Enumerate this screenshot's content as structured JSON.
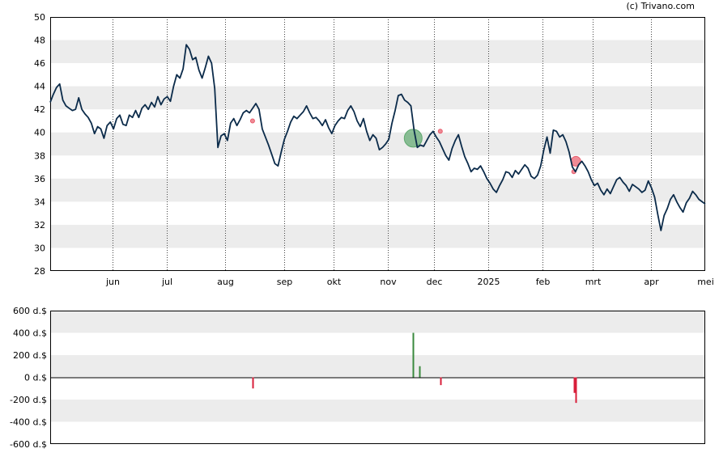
{
  "copyright": "(c) Trivano.com",
  "chart_data": [
    {
      "type": "line",
      "y_ticks": [
        "28",
        "30",
        "32",
        "34",
        "36",
        "38",
        "40",
        "42",
        "44",
        "46",
        "48",
        "50"
      ],
      "ylim": [
        28,
        50
      ],
      "x_tick_labels": [
        "jun",
        "jul",
        "aug",
        "sep",
        "okt",
        "nov",
        "dec",
        "2025",
        "feb",
        "mrt",
        "apr",
        "mei"
      ],
      "x_tick_positions_index": [
        30,
        56,
        84,
        112,
        136,
        162,
        184,
        210,
        236,
        260,
        288,
        314
      ],
      "x_count": 314,
      "grid": true,
      "line_color": "#0b2b4a",
      "series": [
        {
          "values": [
            42.6,
            43.3,
            43.9,
            44.2,
            42.8,
            42.3,
            42.1,
            41.9,
            42.0,
            43.0,
            42.0,
            41.6,
            41.3,
            40.8,
            39.9,
            40.5,
            40.3,
            39.5,
            40.6,
            40.9,
            40.3,
            41.2,
            41.5,
            40.7,
            40.6,
            41.5,
            41.3,
            41.9,
            41.3,
            42.1,
            42.4,
            42.0,
            42.6,
            42.2,
            43.1,
            42.4,
            42.9,
            43.1,
            42.7,
            44.0,
            45.0,
            44.7,
            45.5,
            47.6,
            47.2,
            46.3,
            46.5,
            45.4,
            44.7,
            45.6,
            46.6,
            46.0,
            43.8,
            38.7,
            39.7,
            39.9,
            39.3,
            40.8,
            41.2,
            40.6,
            41.1,
            41.7,
            41.9,
            41.7,
            42.1,
            42.5,
            42.0,
            40.3,
            39.6,
            38.9,
            38.1,
            37.3,
            37.1,
            38.3,
            39.4,
            40.1,
            40.9,
            41.4,
            41.2,
            41.5,
            41.8,
            42.3,
            41.7,
            41.2,
            41.3,
            41.0,
            40.6,
            41.1,
            40.4,
            39.9,
            40.6,
            41.0,
            41.3,
            41.2,
            41.9,
            42.3,
            41.8,
            41.0,
            40.5,
            41.2,
            40.1,
            39.3,
            39.8,
            39.5,
            38.5,
            38.7,
            39.0,
            39.4,
            40.8,
            41.9,
            43.2,
            43.3,
            42.8,
            42.6,
            42.3,
            40.2,
            38.7,
            38.9,
            38.8,
            39.3,
            39.8,
            40.1,
            39.6,
            39.2,
            38.6,
            38.0,
            37.6,
            38.6,
            39.3,
            39.8,
            38.8,
            37.9,
            37.3,
            36.6,
            36.9,
            36.8,
            37.1,
            36.6,
            36.0,
            35.6,
            35.1,
            34.8,
            35.4,
            35.9,
            36.6,
            36.5,
            36.1,
            36.7,
            36.4,
            36.8,
            37.2,
            36.9,
            36.2,
            36.0,
            36.3,
            37.1,
            38.5,
            39.6,
            38.2,
            40.2,
            40.1,
            39.6,
            39.8,
            39.2,
            38.3,
            37.0,
            36.6,
            37.2,
            37.5,
            37.1,
            36.6,
            35.9,
            35.4,
            35.6,
            35.0,
            34.6,
            35.1,
            34.7,
            35.3,
            35.9,
            36.1,
            35.7,
            35.4,
            34.9,
            35.5,
            35.3,
            35.1,
            34.8,
            35.0,
            35.8,
            35.2,
            34.4,
            32.9,
            31.5,
            32.8,
            33.4,
            34.2,
            34.6,
            34.0,
            33.5,
            33.1,
            33.9,
            34.3,
            34.9,
            34.6,
            34.2,
            34.0,
            33.8
          ]
        },
        {
          "values": []
        }
      ],
      "markers": [
        {
          "index": 97,
          "y": 41.0,
          "r": 2.5,
          "color": "#e85a6a"
        },
        {
          "index": 174,
          "y": 39.5,
          "r": 11,
          "color": "#5ea86e"
        },
        {
          "index": 187,
          "y": 40.1,
          "r": 2.5,
          "color": "#e85a6a"
        },
        {
          "index": 252,
          "y": 37.5,
          "r": 6,
          "color": "#e85a6a"
        },
        {
          "index": 251,
          "y": 36.6,
          "r": 2.5,
          "color": "#e85a6a"
        }
      ]
    },
    {
      "type": "bar",
      "y_ticks": [
        "600 d.$",
        "400 d.$",
        "200 d.$",
        "0 d.$",
        "-200 d.$",
        "-400 d.$",
        "-600 d.$"
      ],
      "y_tick_values": [
        600,
        400,
        200,
        0,
        -200,
        -400,
        -600
      ],
      "ylim": [
        -600,
        600
      ],
      "x_count": 314,
      "bars": [
        {
          "index": 97,
          "value": -100,
          "color": "#d81e3a"
        },
        {
          "index": 174,
          "value": 400,
          "color": "#3a8a3e"
        },
        {
          "index": 177,
          "value": 100,
          "color": "#3a8a3e"
        },
        {
          "index": 187,
          "value": -70,
          "color": "#d81e3a"
        },
        {
          "index": 251,
          "value": -140,
          "color": "#d81e3a"
        },
        {
          "index": 252,
          "value": -230,
          "color": "#d81e3a"
        }
      ]
    }
  ]
}
